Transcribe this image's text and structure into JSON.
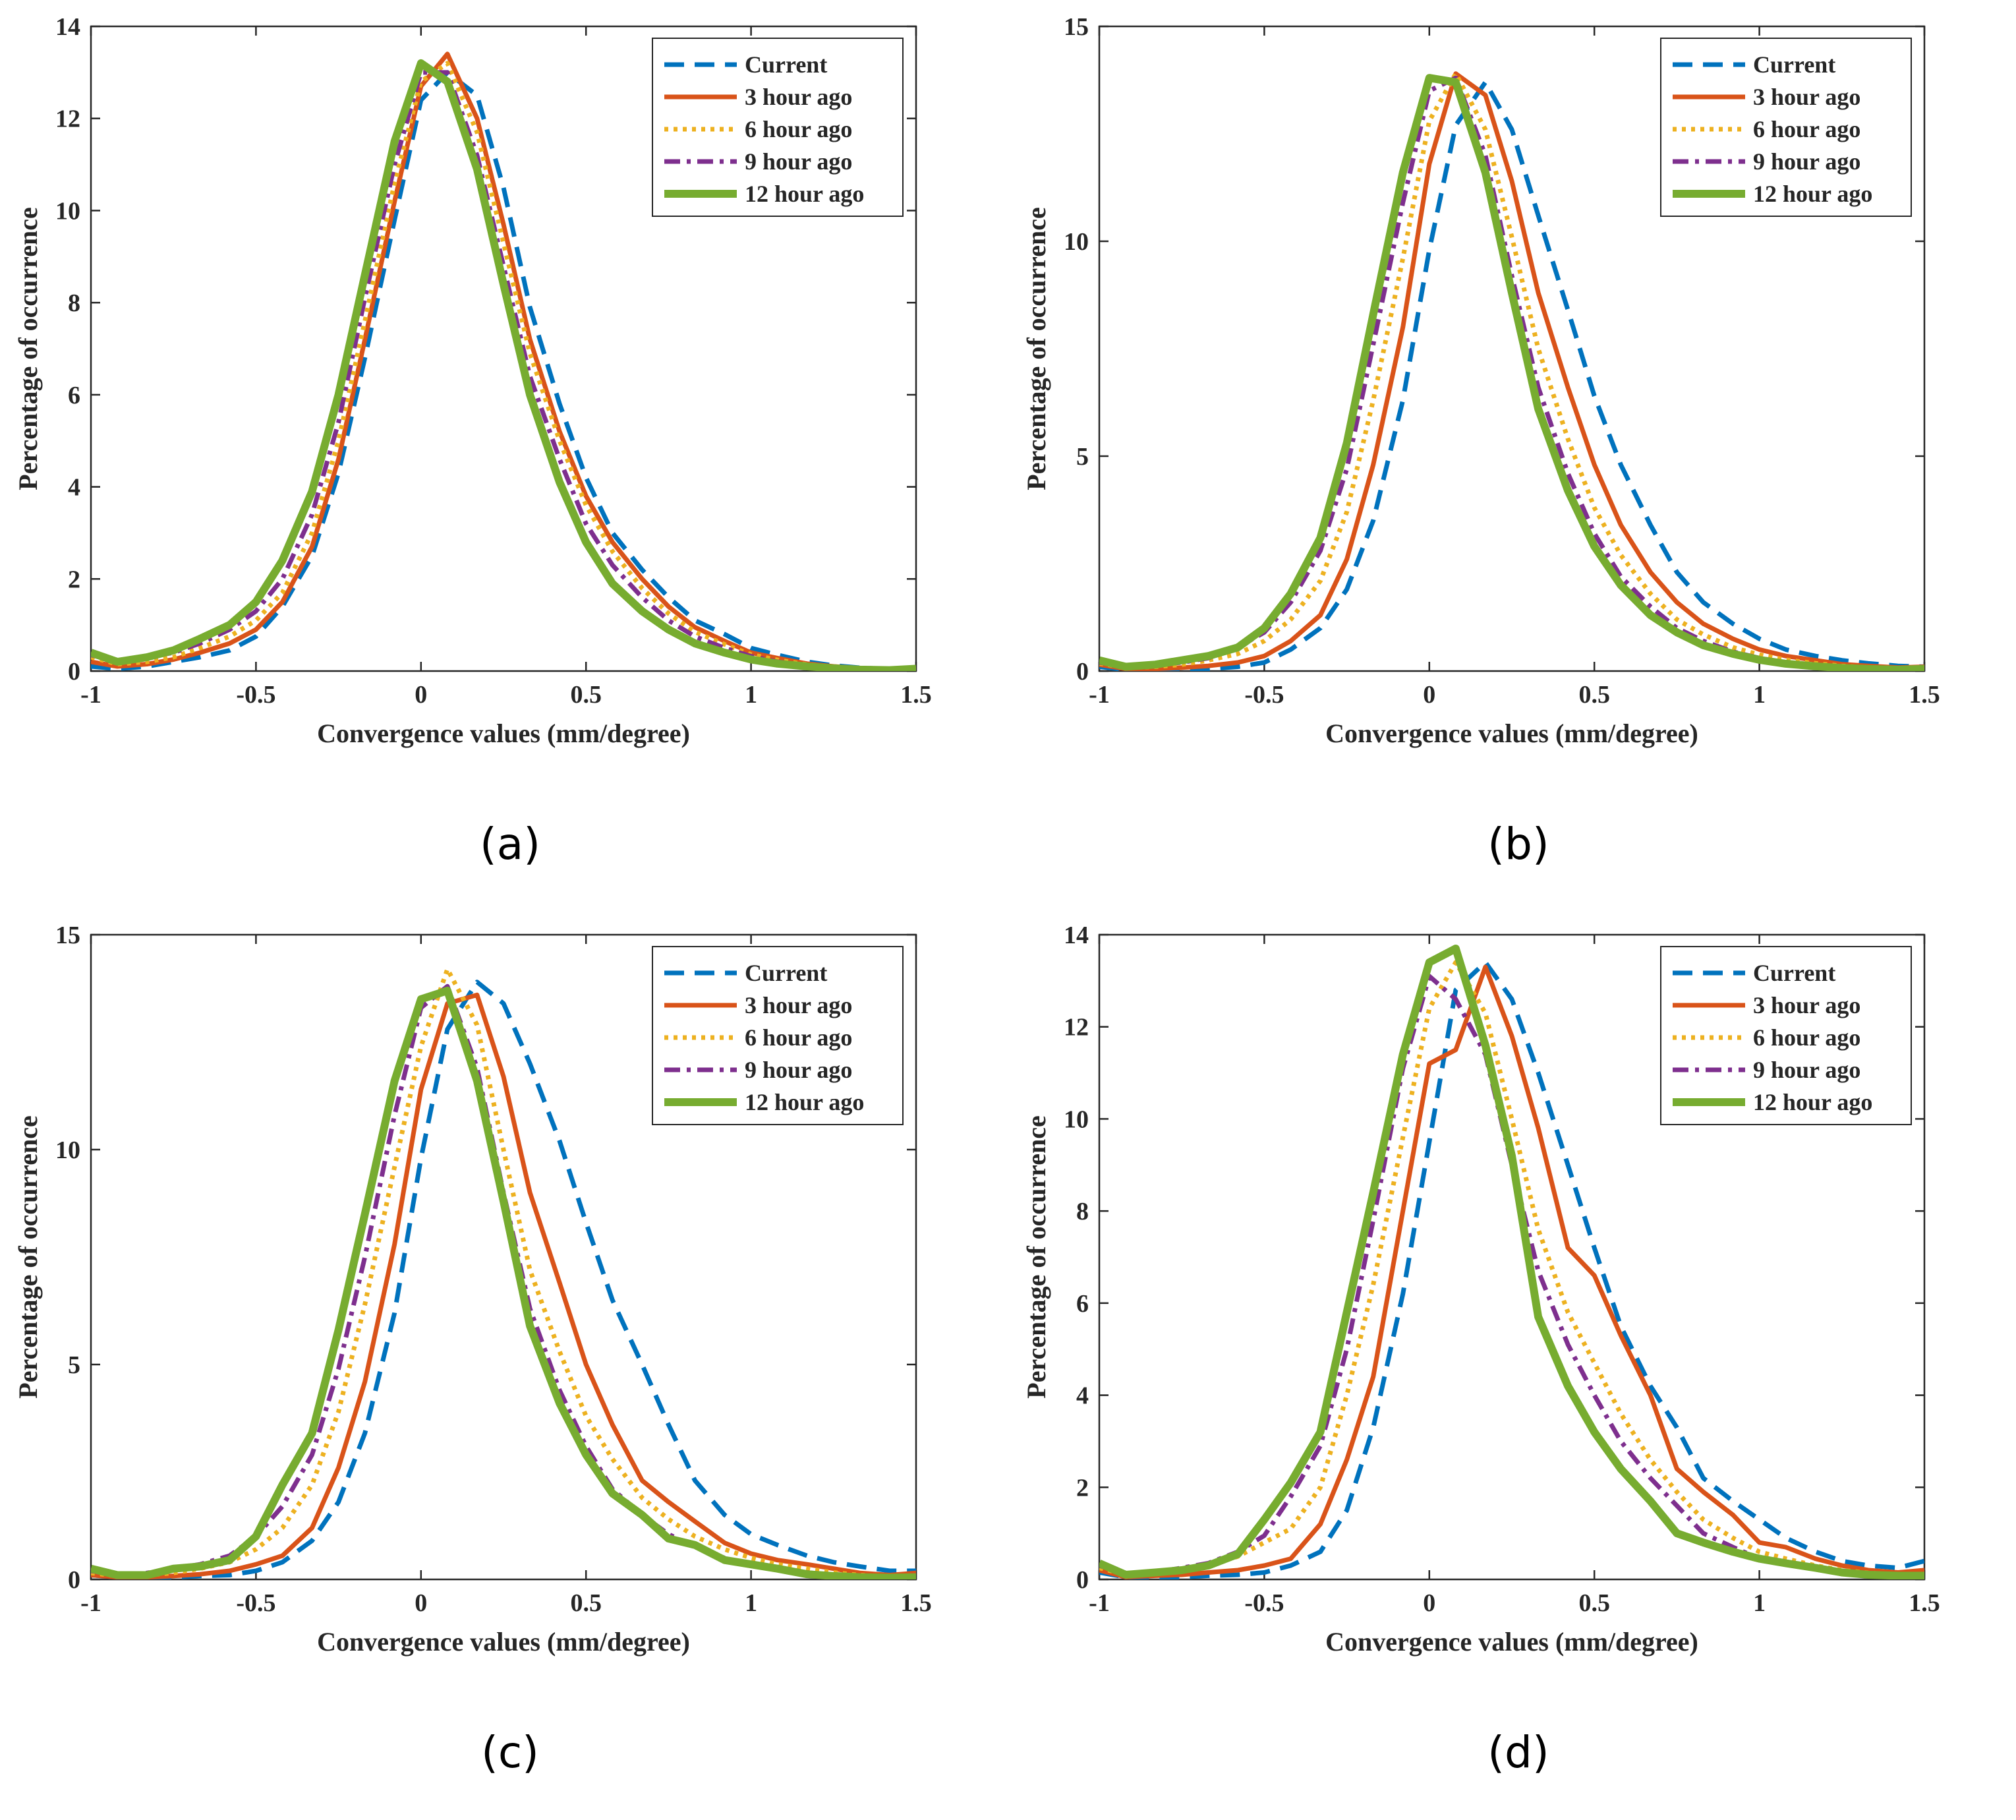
{
  "series_styles": [
    {
      "name": "Current",
      "color": "#0072BD",
      "dash": "30,16",
      "width": 7
    },
    {
      "name": "3 hour ago",
      "color": "#D95319",
      "dash": "",
      "width": 7
    },
    {
      "name": "6 hour ago",
      "color": "#EDB120",
      "dash": "6,8",
      "width": 7
    },
    {
      "name": "9 hour ago",
      "color": "#7E2F8E",
      "dash": "24,10,6,10",
      "width": 7
    },
    {
      "name": "12 hour ago",
      "color": "#77AC30",
      "dash": "",
      "width": 12
    }
  ],
  "chart_data": [
    {
      "type": "line",
      "caption": "(a)",
      "xlabel": "Convergence values (mm/degree)",
      "ylabel": "Percentage of occurrence",
      "xlim": [
        -1,
        1.5
      ],
      "ylim": [
        0,
        14
      ],
      "xticks": [
        -1,
        -0.5,
        0,
        0.5,
        1,
        1.5
      ],
      "xtick_labels": [
        "-1",
        "-0.5",
        "0",
        "0.5",
        "1",
        "1.5"
      ],
      "yticks": [
        0,
        2,
        4,
        6,
        8,
        10,
        12,
        14
      ],
      "ytick_labels": [
        "0",
        "2",
        "4",
        "6",
        "8",
        "10",
        "12",
        "14"
      ],
      "legend_position": "top-right",
      "x": [
        -1,
        -0.92,
        -0.83,
        -0.75,
        -0.67,
        -0.58,
        -0.5,
        -0.42,
        -0.33,
        -0.25,
        -0.17,
        -0.08,
        0,
        0.08,
        0.17,
        0.25,
        0.33,
        0.42,
        0.5,
        0.58,
        0.67,
        0.75,
        0.83,
        0.92,
        1,
        1.08,
        1.17,
        1.25,
        1.33,
        1.42,
        1.5
      ],
      "series": [
        {
          "name": "Current",
          "values": [
            0.1,
            0.05,
            0.1,
            0.2,
            0.3,
            0.45,
            0.75,
            1.4,
            2.5,
            4.3,
            6.8,
            9.8,
            12.4,
            13.0,
            12.5,
            10.5,
            7.9,
            5.8,
            4.2,
            3.0,
            2.2,
            1.6,
            1.1,
            0.8,
            0.5,
            0.35,
            0.2,
            0.12,
            0.07,
            0.04,
            0.05
          ]
        },
        {
          "name": "3 hour ago",
          "values": [
            0.2,
            0.1,
            0.15,
            0.25,
            0.4,
            0.6,
            0.9,
            1.5,
            2.7,
            4.6,
            7.2,
            10.2,
            12.7,
            13.4,
            12.0,
            9.7,
            7.2,
            5.2,
            3.8,
            2.8,
            2.0,
            1.4,
            0.95,
            0.65,
            0.4,
            0.28,
            0.16,
            0.1,
            0.06,
            0.04,
            0.05
          ]
        },
        {
          "name": "6 hour ago",
          "values": [
            0.3,
            0.15,
            0.2,
            0.3,
            0.5,
            0.75,
            1.1,
            1.7,
            3.0,
            5.0,
            7.6,
            10.6,
            12.8,
            13.2,
            11.7,
            9.3,
            6.9,
            5.0,
            3.6,
            2.6,
            1.8,
            1.25,
            0.85,
            0.58,
            0.36,
            0.24,
            0.14,
            0.09,
            0.05,
            0.03,
            0.05
          ]
        },
        {
          "name": "9 hour ago",
          "values": [
            0.35,
            0.2,
            0.3,
            0.4,
            0.6,
            0.9,
            1.3,
            2.0,
            3.4,
            5.4,
            8.1,
            11.0,
            13.0,
            13.0,
            11.2,
            8.8,
            6.4,
            4.6,
            3.2,
            2.3,
            1.6,
            1.1,
            0.75,
            0.5,
            0.32,
            0.2,
            0.12,
            0.07,
            0.04,
            0.02,
            0.05
          ]
        },
        {
          "name": "12 hour ago",
          "values": [
            0.4,
            0.2,
            0.3,
            0.45,
            0.7,
            1.0,
            1.5,
            2.4,
            3.9,
            6.0,
            8.6,
            11.5,
            13.2,
            12.8,
            10.9,
            8.4,
            6.0,
            4.1,
            2.8,
            1.9,
            1.3,
            0.9,
            0.6,
            0.4,
            0.25,
            0.16,
            0.1,
            0.06,
            0.03,
            0.02,
            0.05
          ]
        }
      ]
    },
    {
      "type": "line",
      "caption": "(b)",
      "xlabel": "Convergence values (mm/degree)",
      "ylabel": "Percentage of occurrence",
      "xlim": [
        -1,
        1.5
      ],
      "ylim": [
        0,
        15
      ],
      "xticks": [
        -1,
        -0.5,
        0,
        0.5,
        1,
        1.5
      ],
      "xtick_labels": [
        "-1",
        "-0.5",
        "0",
        "0.5",
        "1",
        "1.5"
      ],
      "yticks": [
        0,
        5,
        10,
        15
      ],
      "ytick_labels": [
        "0",
        "5",
        "10",
        "15"
      ],
      "legend_position": "top-right",
      "x": [
        -1,
        -0.92,
        -0.83,
        -0.75,
        -0.67,
        -0.58,
        -0.5,
        -0.42,
        -0.33,
        -0.25,
        -0.17,
        -0.08,
        0,
        0.08,
        0.17,
        0.25,
        0.33,
        0.42,
        0.5,
        0.58,
        0.67,
        0.75,
        0.83,
        0.92,
        1,
        1.08,
        1.17,
        1.25,
        1.33,
        1.42,
        1.5
      ],
      "series": [
        {
          "name": "Current",
          "values": [
            0.1,
            0.03,
            0.02,
            0.03,
            0.05,
            0.1,
            0.2,
            0.5,
            1.0,
            1.9,
            3.5,
            6.3,
            9.8,
            12.7,
            13.7,
            12.6,
            10.6,
            8.4,
            6.4,
            4.8,
            3.4,
            2.3,
            1.6,
            1.1,
            0.75,
            0.5,
            0.35,
            0.25,
            0.18,
            0.12,
            0.1
          ]
        },
        {
          "name": "3 hour ago",
          "values": [
            0.15,
            0.05,
            0.05,
            0.08,
            0.12,
            0.2,
            0.35,
            0.7,
            1.3,
            2.6,
            4.8,
            8.0,
            11.8,
            13.9,
            13.4,
            11.4,
            8.8,
            6.6,
            4.8,
            3.4,
            2.3,
            1.6,
            1.1,
            0.75,
            0.5,
            0.35,
            0.25,
            0.16,
            0.12,
            0.08,
            0.1
          ]
        },
        {
          "name": "6 hour ago",
          "values": [
            0.18,
            0.08,
            0.1,
            0.15,
            0.25,
            0.4,
            0.7,
            1.2,
            2.1,
            3.7,
            6.3,
            9.6,
            12.8,
            13.9,
            12.6,
            10.1,
            7.5,
            5.4,
            3.8,
            2.7,
            1.8,
            1.2,
            0.85,
            0.55,
            0.38,
            0.26,
            0.18,
            0.12,
            0.08,
            0.05,
            0.08
          ]
        },
        {
          "name": "9 hour ago",
          "values": [
            0.2,
            0.1,
            0.15,
            0.2,
            0.3,
            0.55,
            0.9,
            1.6,
            2.8,
            4.7,
            7.6,
            10.9,
            13.5,
            13.8,
            12.0,
            9.2,
            6.6,
            4.6,
            3.2,
            2.2,
            1.5,
            1.0,
            0.7,
            0.45,
            0.3,
            0.2,
            0.14,
            0.09,
            0.06,
            0.04,
            0.06
          ]
        },
        {
          "name": "12 hour ago",
          "values": [
            0.25,
            0.1,
            0.15,
            0.25,
            0.35,
            0.55,
            1.0,
            1.8,
            3.1,
            5.3,
            8.3,
            11.6,
            13.8,
            13.7,
            11.6,
            8.8,
            6.1,
            4.2,
            2.9,
            2.0,
            1.3,
            0.9,
            0.6,
            0.4,
            0.26,
            0.17,
            0.11,
            0.07,
            0.05,
            0.03,
            0.05
          ]
        }
      ]
    },
    {
      "type": "line",
      "caption": "(c)",
      "xlabel": "Convergence values (mm/degree)",
      "ylabel": "Percentage of occurrence",
      "xlim": [
        -1,
        1.5
      ],
      "ylim": [
        0,
        15
      ],
      "xticks": [
        -1,
        -0.5,
        0,
        0.5,
        1,
        1.5
      ],
      "xtick_labels": [
        "-1",
        "-0.5",
        "0",
        "0.5",
        "1",
        "1.5"
      ],
      "yticks": [
        0,
        5,
        10,
        15
      ],
      "ytick_labels": [
        "0",
        "5",
        "10",
        "15"
      ],
      "legend_position": "top-right",
      "x": [
        -1,
        -0.92,
        -0.83,
        -0.75,
        -0.67,
        -0.58,
        -0.5,
        -0.42,
        -0.33,
        -0.25,
        -0.17,
        -0.08,
        0,
        0.08,
        0.17,
        0.25,
        0.33,
        0.42,
        0.5,
        0.58,
        0.67,
        0.75,
        0.83,
        0.92,
        1,
        1.08,
        1.17,
        1.25,
        1.33,
        1.42,
        1.5
      ],
      "series": [
        {
          "name": "Current",
          "values": [
            0.1,
            0.05,
            0.05,
            0.05,
            0.08,
            0.1,
            0.2,
            0.4,
            0.9,
            1.8,
            3.4,
            6.2,
            9.8,
            12.8,
            13.9,
            13.4,
            12.0,
            10.2,
            8.3,
            6.5,
            5.0,
            3.6,
            2.3,
            1.5,
            1.05,
            0.8,
            0.55,
            0.4,
            0.3,
            0.2,
            0.2
          ]
        },
        {
          "name": "3 hour ago",
          "values": [
            0.1,
            0.05,
            0.05,
            0.08,
            0.12,
            0.2,
            0.35,
            0.55,
            1.2,
            2.6,
            4.6,
            7.8,
            11.4,
            13.4,
            13.6,
            11.7,
            9.0,
            6.9,
            5.0,
            3.6,
            2.3,
            1.8,
            1.35,
            0.85,
            0.6,
            0.45,
            0.35,
            0.25,
            0.15,
            0.1,
            0.15
          ]
        },
        {
          "name": "6 hour ago",
          "values": [
            0.15,
            0.08,
            0.1,
            0.15,
            0.25,
            0.4,
            0.7,
            1.2,
            2.2,
            3.9,
            6.4,
            9.6,
            12.4,
            14.2,
            12.9,
            10.0,
            7.2,
            5.3,
            3.8,
            2.8,
            1.9,
            1.4,
            1.0,
            0.7,
            0.5,
            0.35,
            0.25,
            0.16,
            0.1,
            0.06,
            0.08
          ]
        },
        {
          "name": "9 hour ago",
          "values": [
            0.2,
            0.1,
            0.15,
            0.25,
            0.35,
            0.55,
            1.0,
            1.7,
            2.9,
            4.9,
            7.5,
            10.8,
            13.3,
            13.8,
            11.9,
            9.0,
            6.3,
            4.4,
            3.1,
            2.1,
            1.5,
            1.05,
            0.75,
            0.5,
            0.35,
            0.25,
            0.16,
            0.1,
            0.07,
            0.04,
            0.05
          ]
        },
        {
          "name": "12 hour ago",
          "values": [
            0.25,
            0.1,
            0.1,
            0.25,
            0.3,
            0.45,
            1.0,
            2.2,
            3.4,
            5.8,
            8.5,
            11.6,
            13.5,
            13.7,
            11.6,
            8.8,
            5.9,
            4.1,
            2.9,
            2.0,
            1.5,
            0.95,
            0.8,
            0.45,
            0.35,
            0.25,
            0.12,
            0.08,
            0.05,
            0.04,
            0.05
          ]
        }
      ]
    },
    {
      "type": "line",
      "caption": "(d)",
      "xlabel": "Convergence values (mm/degree)",
      "ylabel": "Percentage of occurrence",
      "xlim": [
        -1,
        1.5
      ],
      "ylim": [
        0,
        14
      ],
      "xticks": [
        -1,
        -0.5,
        0,
        0.5,
        1,
        1.5
      ],
      "xtick_labels": [
        "-1",
        "-0.5",
        "0",
        "0.5",
        "1",
        "1.5"
      ],
      "yticks": [
        0,
        2,
        4,
        6,
        8,
        10,
        12,
        14
      ],
      "ytick_labels": [
        "0",
        "2",
        "4",
        "6",
        "8",
        "10",
        "12",
        "14"
      ],
      "legend_position": "top-right",
      "x": [
        -1,
        -0.92,
        -0.83,
        -0.75,
        -0.67,
        -0.58,
        -0.5,
        -0.42,
        -0.33,
        -0.25,
        -0.17,
        -0.08,
        0,
        0.08,
        0.17,
        0.25,
        0.33,
        0.42,
        0.5,
        0.58,
        0.67,
        0.75,
        0.83,
        0.92,
        1,
        1.08,
        1.17,
        1.25,
        1.33,
        1.42,
        1.5
      ],
      "series": [
        {
          "name": "Current",
          "values": [
            0.15,
            0.05,
            0.05,
            0.05,
            0.08,
            0.1,
            0.15,
            0.3,
            0.6,
            1.5,
            3.3,
            6.2,
            9.5,
            12.8,
            13.4,
            12.6,
            11.0,
            9.0,
            7.2,
            5.5,
            4.2,
            3.3,
            2.2,
            1.7,
            1.3,
            0.9,
            0.6,
            0.4,
            0.3,
            0.25,
            0.4
          ]
        },
        {
          "name": "3 hour ago",
          "values": [
            0.2,
            0.05,
            0.08,
            0.1,
            0.15,
            0.2,
            0.3,
            0.45,
            1.2,
            2.6,
            4.4,
            8.0,
            11.2,
            11.5,
            13.3,
            11.8,
            9.8,
            7.2,
            6.6,
            5.3,
            4.0,
            2.4,
            1.9,
            1.4,
            0.8,
            0.7,
            0.45,
            0.3,
            0.2,
            0.15,
            0.2
          ]
        },
        {
          "name": "6 hour ago",
          "values": [
            0.25,
            0.1,
            0.15,
            0.2,
            0.3,
            0.5,
            0.8,
            1.1,
            2.0,
            4.0,
            6.4,
            9.6,
            12.4,
            13.4,
            12.3,
            10.0,
            7.6,
            5.8,
            4.7,
            3.6,
            2.6,
            1.9,
            1.3,
            0.9,
            0.6,
            0.45,
            0.3,
            0.2,
            0.14,
            0.1,
            0.1
          ]
        },
        {
          "name": "9 hour ago",
          "values": [
            0.3,
            0.12,
            0.15,
            0.25,
            0.35,
            0.6,
            0.95,
            1.8,
            2.9,
            5.0,
            7.8,
            11.1,
            13.1,
            12.6,
            11.4,
            9.0,
            6.7,
            5.1,
            4.0,
            3.0,
            2.2,
            1.6,
            1.0,
            0.7,
            0.45,
            0.32,
            0.22,
            0.14,
            0.1,
            0.07,
            0.08
          ]
        },
        {
          "name": "12 hour ago",
          "values": [
            0.35,
            0.1,
            0.15,
            0.2,
            0.3,
            0.55,
            1.3,
            2.1,
            3.2,
            5.8,
            8.4,
            11.4,
            13.4,
            13.7,
            11.6,
            9.2,
            5.7,
            4.2,
            3.2,
            2.4,
            1.7,
            1.0,
            0.8,
            0.6,
            0.45,
            0.35,
            0.25,
            0.15,
            0.1,
            0.08,
            0.08
          ]
        }
      ]
    }
  ]
}
